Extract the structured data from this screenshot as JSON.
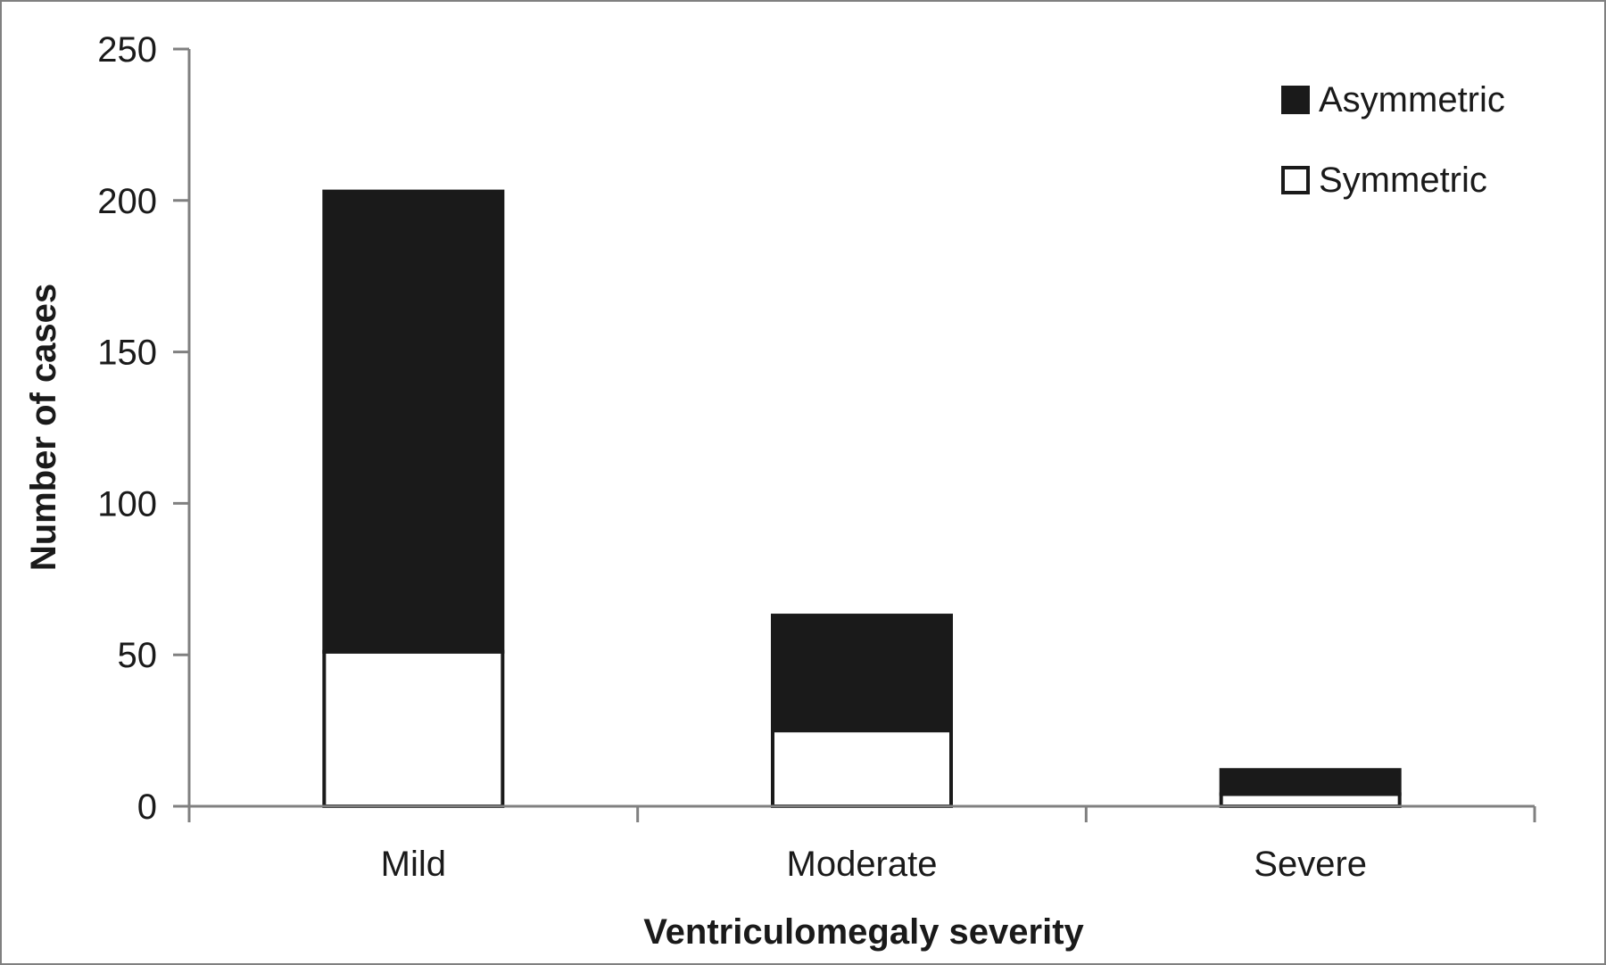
{
  "chart_data": {
    "type": "bar",
    "stacked": true,
    "categories": [
      "Mild",
      "Moderate",
      "Severe"
    ],
    "series": [
      {
        "name": "Symmetric",
        "values": [
          51,
          25,
          4
        ],
        "color": "#ffffff"
      },
      {
        "name": "Asymmetric",
        "values": [
          152,
          38,
          8
        ],
        "color": "#1a1a1a"
      }
    ],
    "xlabel": "Ventriculomegaly severity",
    "ylabel": "Number of cases",
    "ylim": [
      0,
      250
    ],
    "yticks": [
      0,
      50,
      100,
      150,
      200,
      250
    ],
    "grid": false,
    "legend_position": "top-right",
    "legend_order": [
      "Asymmetric",
      "Symmetric"
    ]
  }
}
